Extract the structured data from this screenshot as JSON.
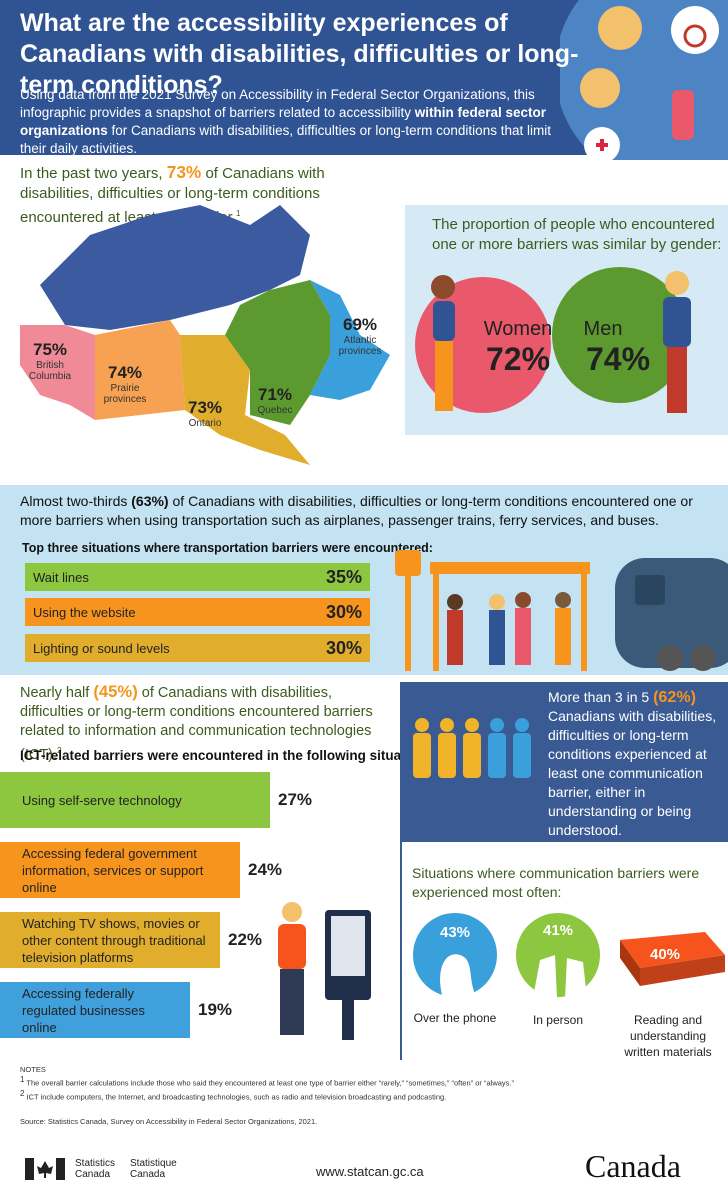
{
  "header": {
    "title": "What are the accessibility experiences of Canadians with disabilities, difficulties or long-term conditions?",
    "intro_before": "Using data from the 2021 Survey on Accessibility in Federal Sector Organizations, this infographic provides a snapshot of barriers related to accessibility ",
    "intro_bold": "within federal sector organizations",
    "intro_after": " for Canadians with disabilities, difficulties or long-term conditions that limit their daily activities."
  },
  "overall": {
    "before": "In the past two years, ",
    "highlight": "73%",
    "after": " of Canadians with disabilities, difficulties or long-term conditions encountered at least one barrier.",
    "note_ref": "1",
    "regions": [
      {
        "value": "75%",
        "name": "British Columbia"
      },
      {
        "value": "74%",
        "name": "Prairie provinces"
      },
      {
        "value": "73%",
        "name": "Ontario"
      },
      {
        "value": "71%",
        "name": "Quebec"
      },
      {
        "value": "69%",
        "name": "Atlantic provinces"
      }
    ]
  },
  "gender": {
    "title": "The proportion of people who encountered one or more barriers was similar by gender:",
    "groups": [
      {
        "name": "Women",
        "value": "72%"
      },
      {
        "name": "Men",
        "value": "74%"
      }
    ]
  },
  "transportation": {
    "before": "Almost two-thirds ",
    "highlight": "(63%)",
    "after": " of Canadians with disabilities, difficulties or long-term conditions encountered one or more barriers when using transportation such as airplanes, passenger trains, ferry services, and buses.",
    "list_title": "Top three situations where transportation barriers were encountered:",
    "items": [
      {
        "label": "Wait lines",
        "value": "35%"
      },
      {
        "label": "Using the website",
        "value": "30%"
      },
      {
        "label": "Lighting or sound levels",
        "value": "30%"
      }
    ]
  },
  "ict": {
    "before": "Nearly half ",
    "highlight": "(45%)",
    "after": " of Canadians with disabilities, difficulties or long-term conditions encountered barriers related to information and communication technologies (ICT).",
    "note_ref": "2"
  },
  "communication": {
    "before": "More than 3 in 5 ",
    "highlight": "(62%)",
    "after": " Canadians with disabilities, difficulties or long-term conditions experienced at least one communication barrier, either in understanding or being understood.",
    "list_title": "Situations where communication barriers were experienced most often:",
    "items": [
      {
        "value": "43%",
        "label": "Over the phone"
      },
      {
        "value": "41%",
        "label": "In person"
      },
      {
        "value": "40%",
        "label": "Reading and understanding written materials"
      }
    ]
  },
  "notes": {
    "title": "NOTES",
    "items": [
      {
        "ref": "1",
        "text": "The overall barrier calculations include those who said they encountered at least one type of barrier either “rarely,” “sometimes,” “often” or “always.”"
      },
      {
        "ref": "2",
        "text": "ICT include computers, the Internet, and broadcasting technologies, such as radio and television broadcasting and podcasting."
      }
    ],
    "source": "Source: Statistics Canada, Survey on Accessibility in Federal Sector Organizations, 2021."
  },
  "footer": {
    "agency_en": [
      "Statistics",
      "Canada"
    ],
    "agency_fr": [
      "Statistique",
      "Canada"
    ],
    "url": "www.statcan.gc.ca",
    "wordmark": "Canada"
  },
  "chart_data": {
    "type": "bar",
    "orientation": "horizontal",
    "title": "ICT-related barriers were encountered in the following situations:",
    "categories": [
      "Using self-serve technology",
      "Accessing federal government information, services or support online",
      "Watching TV shows, movies or other content through traditional television platforms",
      "Accessing federally regulated businesses online"
    ],
    "values": [
      27,
      24,
      22,
      19
    ],
    "value_labels": [
      "27%",
      "24%",
      "22%",
      "19%"
    ],
    "colors": [
      "#8dc63f",
      "#f7941d",
      "#e0ae2c",
      "#3fa0dc"
    ]
  }
}
